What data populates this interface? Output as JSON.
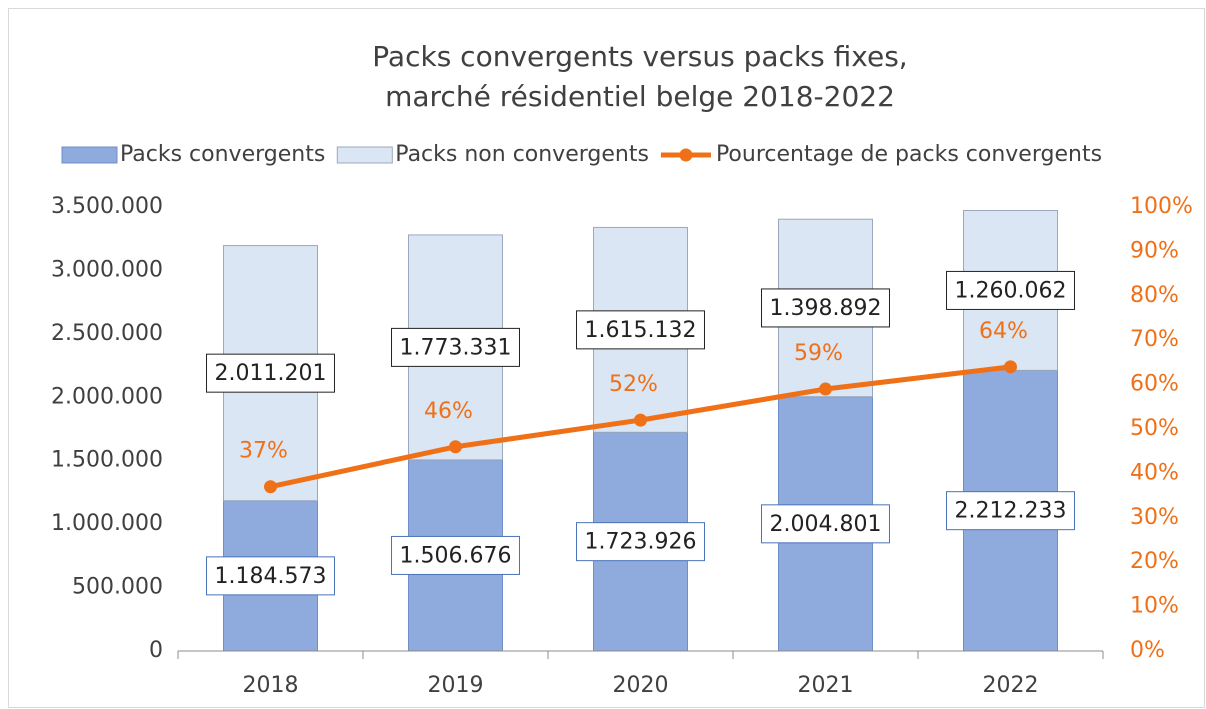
{
  "chart_data": {
    "type": "bar",
    "stacked": true,
    "title": [
      "Packs convergents versus packs fixes,",
      "marché résidentiel belge 2018-2022"
    ],
    "categories": [
      "2018",
      "2019",
      "2020",
      "2021",
      "2022"
    ],
    "series": [
      {
        "name": "Packs convergents",
        "color": "#8faadc",
        "border": "#6f8fc8",
        "values": [
          1184573,
          1506676,
          1723926,
          2004801,
          2212233
        ],
        "value_labels": [
          "1.184.573",
          "1.506.676",
          "1.723.926",
          "2.004.801",
          "2.212.233"
        ]
      },
      {
        "name": "Packs non convergents",
        "color": "#dae6f3",
        "border": "#9aa9bd",
        "values": [
          2011201,
          1773331,
          1615132,
          1398892,
          1260062
        ],
        "value_labels": [
          "2.011.201",
          "1.773.331",
          "1.615.132",
          "1.398.892",
          "1.260.062"
        ]
      },
      {
        "name": "Pourcentage de packs convergents",
        "color": "#f07018",
        "type": "line",
        "axis": "y2",
        "values": [
          37,
          46,
          52,
          59,
          64
        ],
        "value_labels": [
          "37%",
          "46%",
          "52%",
          "59%",
          "64%"
        ]
      }
    ],
    "ylim": [
      0,
      3500000
    ],
    "yticks": [
      0,
      {
        "value": 500000,
        "label": "500.000"
      },
      {
        "value": 1000000,
        "label": "1.000.000"
      },
      {
        "value": 1500000,
        "label": "1.500.000"
      },
      {
        "value": 2000000,
        "label": "2.000.000"
      },
      {
        "value": 2500000,
        "label": "2.500.000"
      },
      {
        "value": 3000000,
        "label": "3.000.000"
      },
      {
        "value": 3500000,
        "label": "3.500.000"
      }
    ],
    "y2lim": [
      0,
      100
    ],
    "y2ticks": [
      {
        "value": 0,
        "label": "0%"
      },
      {
        "value": 10,
        "label": "10%"
      },
      {
        "value": 20,
        "label": "20%"
      },
      {
        "value": 30,
        "label": "30%"
      },
      {
        "value": 40,
        "label": "40%"
      },
      {
        "value": 50,
        "label": "50%"
      },
      {
        "value": 60,
        "label": "60%"
      },
      {
        "value": 70,
        "label": "70%"
      },
      {
        "value": 80,
        "label": "80%"
      },
      {
        "value": 90,
        "label": "90%"
      },
      {
        "value": 100,
        "label": "100%"
      }
    ],
    "legend": "top",
    "grid": false
  }
}
